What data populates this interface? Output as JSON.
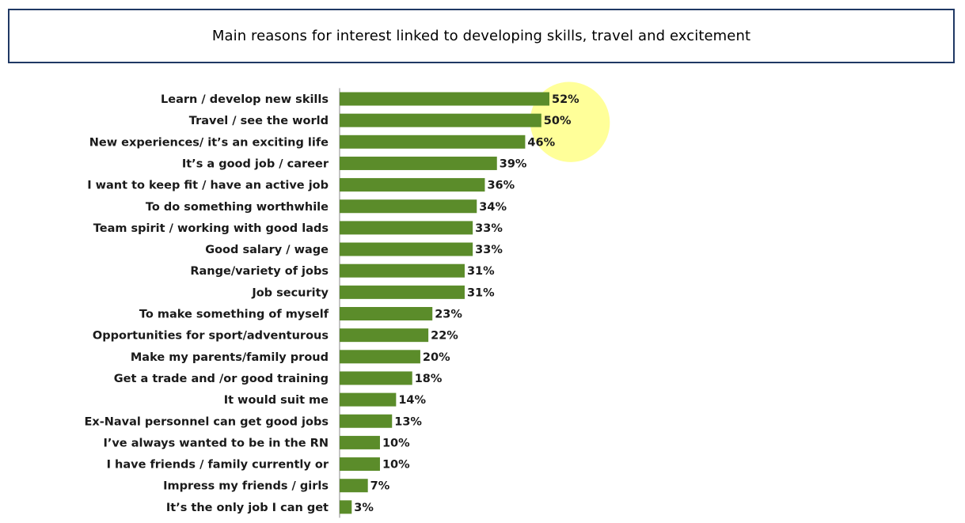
{
  "colors": {
    "bar": "#5b8c2a",
    "highlight": "#ffff99",
    "title_border": "#1f3864",
    "axis": "#888888"
  },
  "chart_data": {
    "type": "bar",
    "orientation": "horizontal",
    "title": "Main reasons for interest linked to developing skills, travel and excitement",
    "value_suffix": "%",
    "xlim": [
      0,
      52
    ],
    "categories": [
      "Learn / develop new skills",
      "Travel / see the world",
      "New experiences/ it’s an exciting life",
      "It’s a good job / career",
      "I want to keep fit / have an active job",
      "To do something worthwhile",
      "Team spirit / working with good lads",
      "Good salary / wage",
      "Range/variety of jobs",
      "Job security",
      "To make something of myself",
      "Opportunities for sport/adventurous",
      "Make my parents/family proud",
      "Get a trade and /or good training",
      "It would suit me",
      "Ex-Naval personnel can get good jobs",
      "I’ve always wanted to be in the RN",
      "I have friends / family currently or",
      "Impress my friends / girls",
      "It’s the only job I can get"
    ],
    "values": [
      52,
      50,
      46,
      39,
      36,
      34,
      33,
      33,
      31,
      31,
      23,
      22,
      20,
      18,
      14,
      13,
      10,
      10,
      7,
      3
    ],
    "value_labels": [
      "52%",
      "50%",
      "46%",
      "39%",
      "36%",
      "34%",
      "33%",
      "33%",
      "31%",
      "31%",
      "23%",
      "22%",
      "20%",
      "18%",
      "14%",
      "13%",
      "10%",
      "10%",
      "7%",
      "3%"
    ],
    "highlighted_categories": [
      0,
      1,
      2
    ],
    "grid": false,
    "legend": "none"
  }
}
